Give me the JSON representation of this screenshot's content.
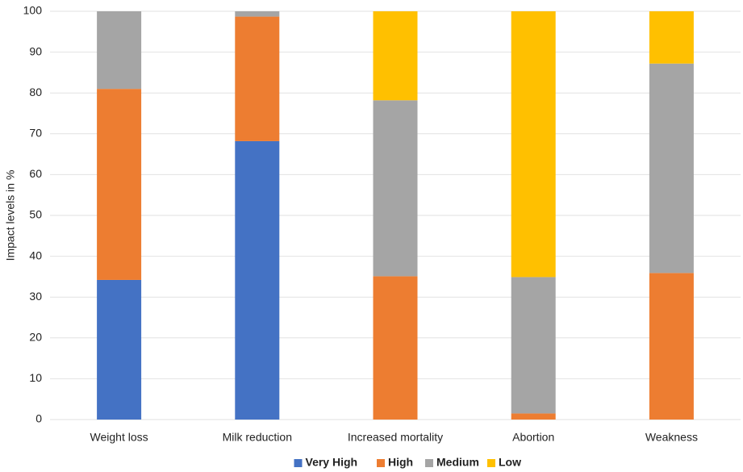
{
  "chart_data": {
    "type": "stacked-bar",
    "y_label": "Impact levels in %",
    "categories": [
      "Weight loss",
      "Milk reduction",
      "Increased mortality",
      "Abortion",
      "Weakness"
    ],
    "series": [
      {
        "name": "Very High",
        "color": "#4472c4",
        "values": [
          34.2,
          68.2,
          0,
          0,
          0
        ]
      },
      {
        "name": "High",
        "color": "#ed7d31",
        "values": [
          46.8,
          30.5,
          35.1,
          1.5,
          35.9
        ]
      },
      {
        "name": "Medium",
        "color": "#a5a5a5",
        "values": [
          19.0,
          1.3,
          43.1,
          33.4,
          51.3
        ]
      },
      {
        "name": "Low",
        "color": "#ffc000",
        "values": [
          0,
          0,
          21.8,
          65.1,
          12.8
        ]
      }
    ],
    "ylim": [
      0,
      100
    ],
    "yticks": [
      0,
      10,
      20,
      30,
      40,
      50,
      60,
      70,
      80,
      90,
      100
    ],
    "grid": true,
    "legend": "bottom"
  }
}
